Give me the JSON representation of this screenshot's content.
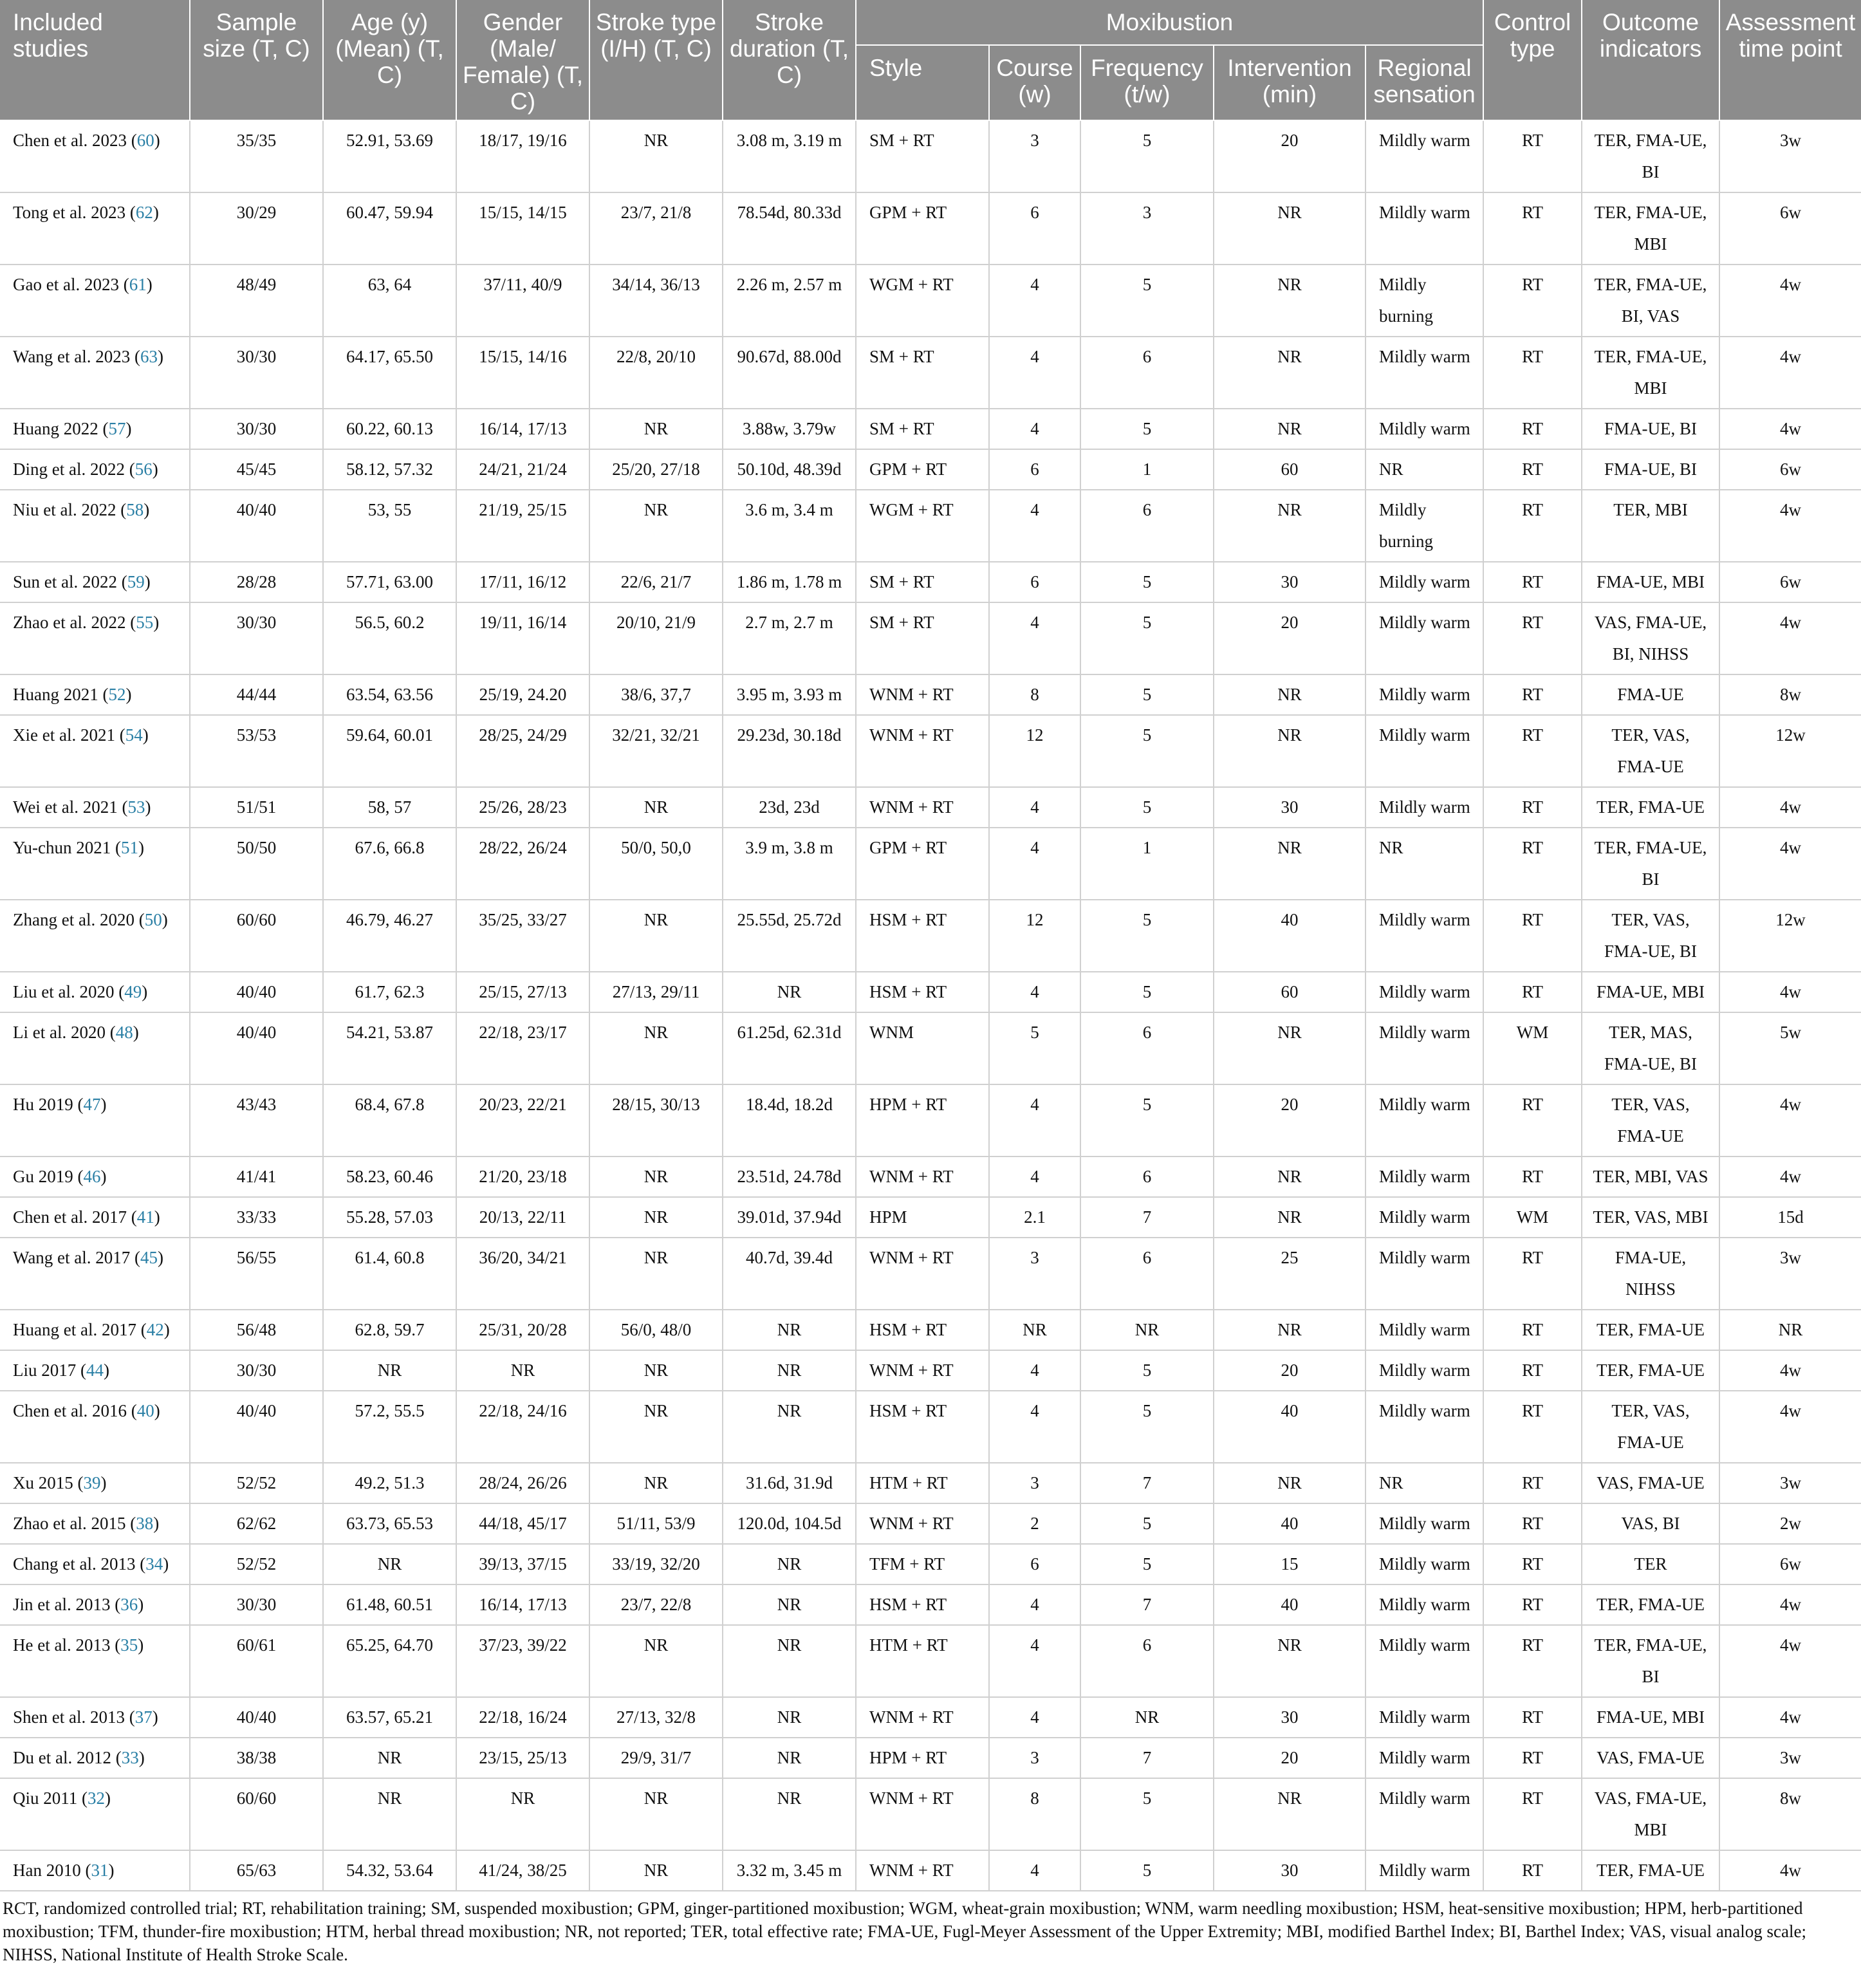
{
  "header": {
    "columns": [
      "Included studies",
      "Sample size (T, C)",
      "Age (y) (Mean) (T, C)",
      "Gender (Male/ Female) (T, C)",
      "Stroke type (I/H) (T, C)",
      "Stroke duration (T, C)",
      "Control type",
      "Outcome indicators",
      "Assessment time point"
    ],
    "group": "Moxibustion",
    "subcolumns": [
      "Style",
      "Course (w)",
      "Frequency (t/w)",
      "Intervention (min)",
      "Regional sensation"
    ]
  },
  "table": {
    "rows": [
      [
        {
          "name": "Chen et al. 2023",
          "ref": "60"
        },
        "35/35",
        "52.91, 53.69",
        "18/17, 19/16",
        "NR",
        "3.08 m, 3.19 m",
        "SM + RT",
        "3",
        "5",
        "20",
        "Mildly warm",
        "RT",
        "TER, FMA-UE, BI",
        "3w"
      ],
      [
        {
          "name": "Tong et al. 2023",
          "ref": "62"
        },
        "30/29",
        "60.47, 59.94",
        "15/15, 14/15",
        "23/7, 21/8",
        "78.54d, 80.33d",
        "GPM + RT",
        "6",
        "3",
        "NR",
        "Mildly warm",
        "RT",
        "TER, FMA-UE, MBI",
        "6w"
      ],
      [
        {
          "name": "Gao et al. 2023",
          "ref": "61"
        },
        "48/49",
        "63, 64",
        "37/11, 40/9",
        "34/14, 36/13",
        "2.26 m, 2.57 m",
        "WGM + RT",
        "4",
        "5",
        "NR",
        "Mildly burning",
        "RT",
        "TER, FMA-UE, BI, VAS",
        "4w"
      ],
      [
        {
          "name": "Wang et al. 2023",
          "ref": "63"
        },
        "30/30",
        "64.17, 65.50",
        "15/15, 14/16",
        "22/8, 20/10",
        "90.67d, 88.00d",
        "SM + RT",
        "4",
        "6",
        "NR",
        "Mildly warm",
        "RT",
        "TER, FMA-UE, MBI",
        "4w"
      ],
      [
        {
          "name": "Huang 2022",
          "ref": "57"
        },
        "30/30",
        "60.22, 60.13",
        "16/14, 17/13",
        "NR",
        "3.88w, 3.79w",
        "SM + RT",
        "4",
        "5",
        "NR",
        "Mildly warm",
        "RT",
        "FMA-UE, BI",
        "4w"
      ],
      [
        {
          "name": "Ding et al. 2022",
          "ref": "56"
        },
        "45/45",
        "58.12, 57.32",
        "24/21, 21/24",
        "25/20, 27/18",
        "50.10d, 48.39d",
        "GPM + RT",
        "6",
        "1",
        "60",
        "NR",
        "RT",
        "FMA-UE, BI",
        "6w"
      ],
      [
        {
          "name": "Niu et al. 2022",
          "ref": "58"
        },
        "40/40",
        "53, 55",
        "21/19, 25/15",
        "NR",
        "3.6 m, 3.4 m",
        "WGM + RT",
        "4",
        "6",
        "NR",
        "Mildly burning",
        "RT",
        "TER, MBI",
        "4w"
      ],
      [
        {
          "name": "Sun et al. 2022",
          "ref": "59"
        },
        "28/28",
        "57.71, 63.00",
        "17/11, 16/12",
        "22/6, 21/7",
        "1.86 m, 1.78 m",
        "SM + RT",
        "6",
        "5",
        "30",
        "Mildly warm",
        "RT",
        "FMA-UE, MBI",
        "6w"
      ],
      [
        {
          "name": "Zhao et al. 2022",
          "ref": "55"
        },
        "30/30",
        "56.5, 60.2",
        "19/11, 16/14",
        "20/10, 21/9",
        "2.7 m, 2.7 m",
        "SM + RT",
        "4",
        "5",
        "20",
        "Mildly warm",
        "RT",
        "VAS, FMA-UE, BI, NIHSS",
        "4w"
      ],
      [
        {
          "name": "Huang 2021",
          "ref": "52"
        },
        "44/44",
        "63.54, 63.56",
        "25/19, 24.20",
        "38/6, 37,7",
        "3.95 m, 3.93 m",
        "WNM + RT",
        "8",
        "5",
        "NR",
        "Mildly warm",
        "RT",
        "FMA-UE",
        "8w"
      ],
      [
        {
          "name": "Xie et al. 2021",
          "ref": "54"
        },
        "53/53",
        "59.64, 60.01",
        "28/25, 24/29",
        "32/21, 32/21",
        "29.23d, 30.18d",
        "WNM + RT",
        "12",
        "5",
        "NR",
        "Mildly warm",
        "RT",
        "TER, VAS, FMA-UE",
        "12w"
      ],
      [
        {
          "name": "Wei et al. 2021",
          "ref": "53"
        },
        "51/51",
        "58, 57",
        "25/26, 28/23",
        "NR",
        "23d, 23d",
        "WNM + RT",
        "4",
        "5",
        "30",
        "Mildly warm",
        "RT",
        "TER, FMA-UE",
        "4w"
      ],
      [
        {
          "name": "Yu-chun 2021",
          "ref": "51"
        },
        "50/50",
        "67.6, 66.8",
        "28/22, 26/24",
        "50/0, 50,0",
        "3.9 m, 3.8 m",
        "GPM + RT",
        "4",
        "1",
        "NR",
        "NR",
        "RT",
        "TER, FMA-UE, BI",
        "4w"
      ],
      [
        {
          "name": "Zhang et al. 2020",
          "ref": "50"
        },
        "60/60",
        "46.79, 46.27",
        "35/25, 33/27",
        "NR",
        "25.55d, 25.72d",
        "HSM + RT",
        "12",
        "5",
        "40",
        "Mildly warm",
        "RT",
        "TER, VAS, FMA-UE, BI",
        "12w"
      ],
      [
        {
          "name": "Liu et al. 2020",
          "ref": "49"
        },
        "40/40",
        "61.7, 62.3",
        "25/15, 27/13",
        "27/13, 29/11",
        "NR",
        "HSM + RT",
        "4",
        "5",
        "60",
        "Mildly warm",
        "RT",
        "FMA-UE, MBI",
        "4w"
      ],
      [
        {
          "name": "Li et al. 2020",
          "ref": "48"
        },
        "40/40",
        "54.21, 53.87",
        "22/18, 23/17",
        "NR",
        "61.25d, 62.31d",
        "WNM",
        "5",
        "6",
        "NR",
        "Mildly warm",
        "WM",
        "TER, MAS, FMA-UE, BI",
        "5w"
      ],
      [
        {
          "name": "Hu 2019",
          "ref": "47"
        },
        "43/43",
        "68.4, 67.8",
        "20/23, 22/21",
        "28/15, 30/13",
        "18.4d, 18.2d",
        "HPM + RT",
        "4",
        "5",
        "20",
        "Mildly warm",
        "RT",
        "TER, VAS, FMA-UE",
        "4w"
      ],
      [
        {
          "name": "Gu 2019",
          "ref": "46"
        },
        "41/41",
        "58.23, 60.46",
        "21/20, 23/18",
        "NR",
        "23.51d, 24.78d",
        "WNM + RT",
        "4",
        "6",
        "NR",
        "Mildly warm",
        "RT",
        "TER, MBI, VAS",
        "4w"
      ],
      [
        {
          "name": "Chen et al. 2017",
          "ref": "41"
        },
        "33/33",
        "55.28, 57.03",
        "20/13, 22/11",
        "NR",
        "39.01d, 37.94d",
        "HPM",
        "2.1",
        "7",
        "NR",
        "Mildly warm",
        "WM",
        "TER, VAS, MBI",
        "15d"
      ],
      [
        {
          "name": "Wang et al. 2017",
          "ref": "45"
        },
        "56/55",
        "61.4, 60.8",
        "36/20, 34/21",
        "NR",
        "40.7d, 39.4d",
        "WNM + RT",
        "3",
        "6",
        "25",
        "Mildly warm",
        "RT",
        "FMA-UE, NIHSS",
        "3w"
      ],
      [
        {
          "name": "Huang et al. 2017",
          "ref": "42"
        },
        "56/48",
        "62.8, 59.7",
        "25/31, 20/28",
        "56/0, 48/0",
        "NR",
        "HSM + RT",
        "NR",
        "NR",
        "NR",
        "Mildly warm",
        "RT",
        "TER, FMA-UE",
        "NR"
      ],
      [
        {
          "name": "Liu 2017",
          "ref": "44"
        },
        "30/30",
        "NR",
        "NR",
        "NR",
        "NR",
        "WNM + RT",
        "4",
        "5",
        "20",
        "Mildly warm",
        "RT",
        "TER, FMA-UE",
        "4w"
      ],
      [
        {
          "name": "Chen et al. 2016",
          "ref": "40"
        },
        "40/40",
        "57.2, 55.5",
        "22/18, 24/16",
        "NR",
        "NR",
        "HSM + RT",
        "4",
        "5",
        "40",
        "Mildly warm",
        "RT",
        "TER, VAS, FMA-UE",
        "4w"
      ],
      [
        {
          "name": "Xu 2015",
          "ref": "39"
        },
        "52/52",
        "49.2, 51.3",
        "28/24, 26/26",
        "NR",
        "31.6d, 31.9d",
        "HTM + RT",
        "3",
        "7",
        "NR",
        "NR",
        "RT",
        "VAS, FMA-UE",
        "3w"
      ],
      [
        {
          "name": "Zhao et al. 2015",
          "ref": "38"
        },
        "62/62",
        "63.73, 65.53",
        "44/18, 45/17",
        "51/11, 53/9",
        "120.0d, 104.5d",
        "WNM + RT",
        "2",
        "5",
        "40",
        "Mildly warm",
        "RT",
        "VAS, BI",
        "2w"
      ],
      [
        {
          "name": "Chang et al. 2013",
          "ref": "34"
        },
        "52/52",
        "NR",
        "39/13, 37/15",
        "33/19, 32/20",
        "NR",
        "TFM + RT",
        "6",
        "5",
        "15",
        "Mildly warm",
        "RT",
        "TER",
        "6w"
      ],
      [
        {
          "name": "Jin et al. 2013",
          "ref": "36"
        },
        "30/30",
        "61.48, 60.51",
        "16/14, 17/13",
        "23/7, 22/8",
        "NR",
        "HSM + RT",
        "4",
        "7",
        "40",
        "Mildly warm",
        "RT",
        "TER, FMA-UE",
        "4w"
      ],
      [
        {
          "name": "He et al. 2013",
          "ref": "35"
        },
        "60/61",
        "65.25, 64.70",
        "37/23, 39/22",
        "NR",
        "NR",
        "HTM + RT",
        "4",
        "6",
        "NR",
        "Mildly warm",
        "RT",
        "TER, FMA-UE, BI",
        "4w"
      ],
      [
        {
          "name": "Shen et al. 2013",
          "ref": "37"
        },
        "40/40",
        "63.57, 65.21",
        "22/18, 16/24",
        "27/13, 32/8",
        "NR",
        "WNM + RT",
        "4",
        "NR",
        "30",
        "Mildly warm",
        "RT",
        "FMA-UE, MBI",
        "4w"
      ],
      [
        {
          "name": "Du et al. 2012",
          "ref": "33"
        },
        "38/38",
        "NR",
        "23/15, 25/13",
        "29/9, 31/7",
        "NR",
        "HPM + RT",
        "3",
        "7",
        "20",
        "Mildly warm",
        "RT",
        "VAS, FMA-UE",
        "3w"
      ],
      [
        {
          "name": "Qiu 2011",
          "ref": "32"
        },
        "60/60",
        "NR",
        "NR",
        "NR",
        "NR",
        "WNM + RT",
        "8",
        "5",
        "NR",
        "Mildly warm",
        "RT",
        "VAS, FMA-UE, MBI",
        "8w"
      ],
      [
        {
          "name": "Han 2010",
          "ref": "31"
        },
        "65/63",
        "54.32, 53.64",
        "41/24, 38/25",
        "NR",
        "3.32 m, 3.45 m",
        "WNM + RT",
        "4",
        "5",
        "30",
        "Mildly warm",
        "RT",
        "TER, FMA-UE",
        "4w"
      ]
    ]
  },
  "note": "RCT, randomized controlled trial; RT, rehabilitation training; SM, suspended moxibustion; GPM, ginger-partitioned moxibustion; WGM, wheat-grain moxibustion; WNM, warm needling moxibustion; HSM, heat-sensitive moxibustion; HPM, herb-partitioned moxibustion; TFM, thunder-fire moxibustion; HTM, herbal thread moxibustion; NR, not reported; TER, total effective rate; FMA-UE, Fugl-Meyer Assessment of the Upper Extremity; MBI, modified Barthel Index; BI, Barthel Index; VAS, visual analog scale; NIHSS, National Institute of Health Stroke Scale."
}
